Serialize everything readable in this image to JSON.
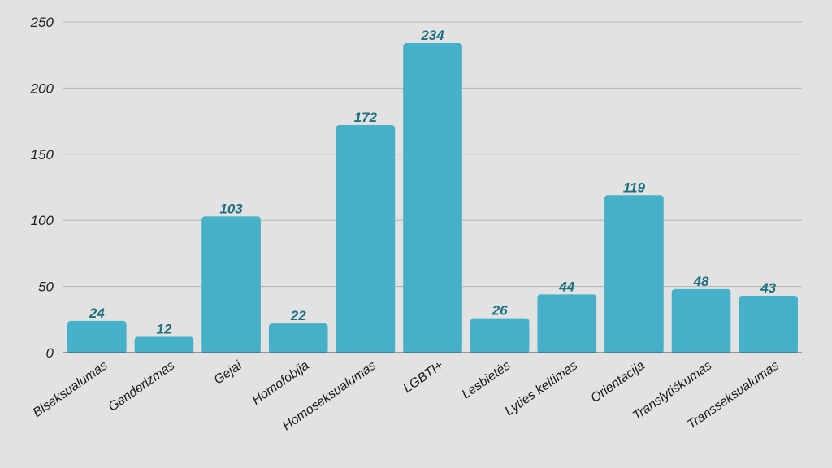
{
  "chart_data": {
    "type": "bar",
    "title": "",
    "xlabel": "",
    "ylabel": "",
    "categories": [
      "Biseksualumas",
      "Genderizmas",
      "Gejai",
      "Homofobija",
      "Homoseksualumas",
      "LGBTI+",
      "Lesbietės",
      "Lyties keitimas",
      "Orientacija",
      "Translytiškumas",
      "Transseksualumas"
    ],
    "values": [
      24,
      12,
      103,
      22,
      172,
      234,
      26,
      44,
      119,
      48,
      43
    ],
    "ylim": [
      0,
      250
    ],
    "yticks": [
      0,
      50,
      100,
      150,
      200,
      250
    ],
    "grid": true,
    "legend": "none"
  },
  "colors": {
    "background": "#e2e2e2",
    "bar": "#47b0c9",
    "value_label": "#1c6f80",
    "grid": "#b4b4b4",
    "axis": "#4a4a4a"
  }
}
